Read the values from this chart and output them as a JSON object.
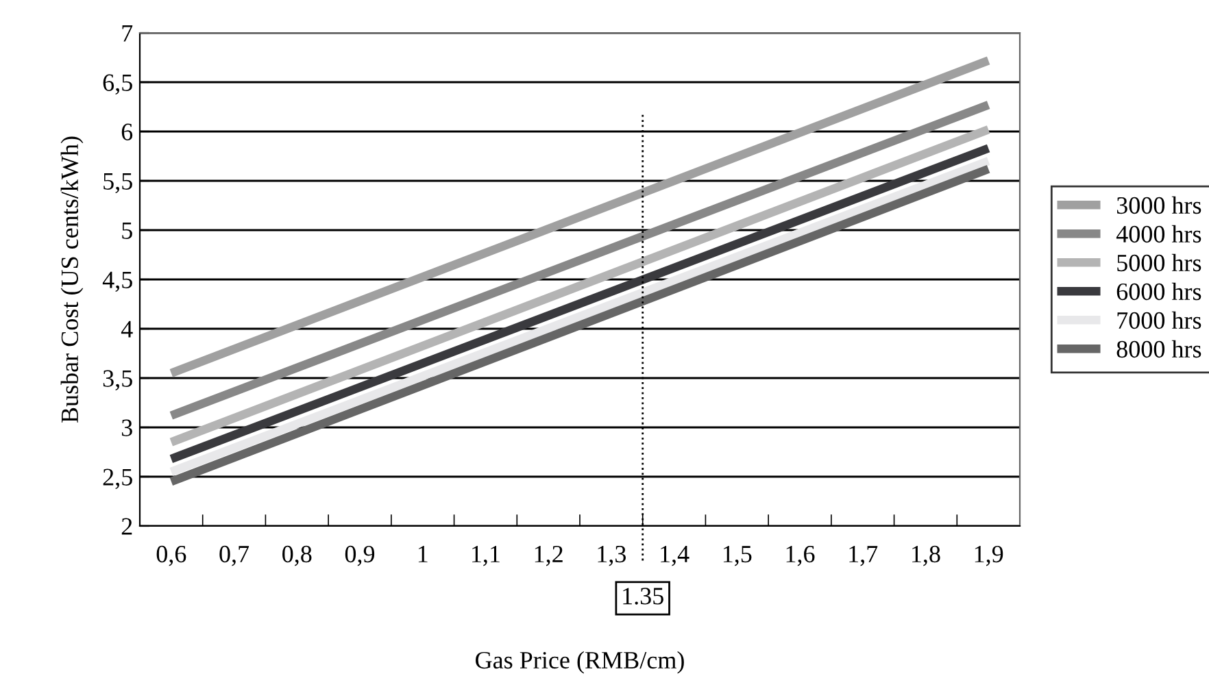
{
  "chart_data": {
    "type": "line",
    "xlabel": "Gas Price (RMB/cm)",
    "ylabel": "Busbar Cost (US cents/kWh)",
    "x": [
      0.6,
      1.9
    ],
    "series": [
      {
        "name": "3000 hrs",
        "color": "#a0a0a0",
        "values": [
          3.55,
          6.72
        ]
      },
      {
        "name": "4000 hrs",
        "color": "#888888",
        "values": [
          3.12,
          6.27
        ]
      },
      {
        "name": "5000 hrs",
        "color": "#b4b4b4",
        "values": [
          2.85,
          6.02
        ]
      },
      {
        "name": "6000 hrs",
        "color": "#3a3a3e",
        "values": [
          2.68,
          5.83
        ]
      },
      {
        "name": "7000 hrs",
        "color": "#e8e8ea",
        "values": [
          2.55,
          5.7
        ]
      },
      {
        "name": "8000 hrs",
        "color": "#666666",
        "values": [
          2.45,
          5.62
        ]
      }
    ],
    "xlim": [
      0.55,
      1.95
    ],
    "xticks": [
      {
        "value": 0.6,
        "label": "0,6"
      },
      {
        "value": 0.7,
        "label": "0,7"
      },
      {
        "value": 0.8,
        "label": "0,8"
      },
      {
        "value": 0.9,
        "label": "0,9"
      },
      {
        "value": 1,
        "label": "1"
      },
      {
        "value": 1.1,
        "label": "1,1"
      },
      {
        "value": 1.2,
        "label": "1,2"
      },
      {
        "value": 1.3,
        "label": "1,3"
      },
      {
        "value": 1.4,
        "label": "1,4"
      },
      {
        "value": 1.5,
        "label": "1,5"
      },
      {
        "value": 1.6,
        "label": "1,6"
      },
      {
        "value": 1.7,
        "label": "1,7"
      },
      {
        "value": 1.8,
        "label": "1,8"
      },
      {
        "value": 1.9,
        "label": "1,9"
      }
    ],
    "ylim": [
      2,
      7
    ],
    "yticks": [
      2,
      {
        "value": 2.5,
        "label": "2,5"
      },
      3,
      {
        "value": 3.5,
        "label": "3,5"
      },
      4,
      {
        "value": 4.5,
        "label": "4,5"
      },
      5,
      {
        "value": 5.5,
        "label": "5,5"
      },
      6,
      {
        "value": 6.5,
        "label": "6,5"
      },
      7
    ],
    "ref_lines": [
      {
        "axis": "x",
        "value": 1.35,
        "label": "1.35",
        "color": "#000000",
        "line_style": "dotted"
      }
    ],
    "grid": "y",
    "legend": "right",
    "marker": "none",
    "line_style": "solid"
  }
}
